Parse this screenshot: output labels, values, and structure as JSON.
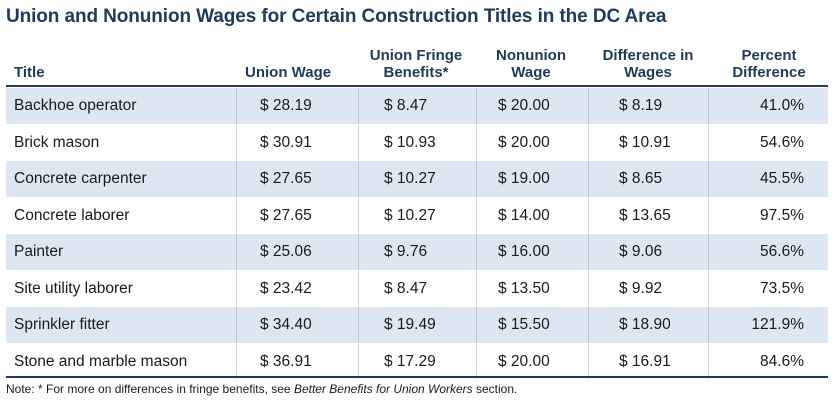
{
  "title": "Union and Nonunion Wages for Certain Construction Titles in the DC Area",
  "columns": {
    "title": "Title",
    "union_wage": "Union Wage",
    "fringe_line1": "Union Fringe",
    "fringe_line2": "Benefits*",
    "nonunion_line1": "Nonunion",
    "nonunion_line2": "Wage",
    "diff_line1": "Difference in",
    "diff_line2": "Wages",
    "pct_line1": "Percent",
    "pct_line2": "Difference"
  },
  "rows": [
    {
      "title": "Backhoe operator",
      "union_wage": "$ 28.19",
      "fringe": "$ 8.47",
      "nonunion": "$ 20.00",
      "diff": "$ 8.19",
      "pct": "41.0%"
    },
    {
      "title": "Brick mason",
      "union_wage": "$ 30.91",
      "fringe": "$ 10.93",
      "nonunion": "$ 20.00",
      "diff": "$ 10.91",
      "pct": "54.6%"
    },
    {
      "title": "Concrete carpenter",
      "union_wage": "$ 27.65",
      "fringe": "$ 10.27",
      "nonunion": "$ 19.00",
      "diff": "$ 8.65",
      "pct": "45.5%"
    },
    {
      "title": "Concrete laborer",
      "union_wage": "$ 27.65",
      "fringe": "$ 10.27",
      "nonunion": "$ 14.00",
      "diff": "$ 13.65",
      "pct": "97.5%"
    },
    {
      "title": "Painter",
      "union_wage": "$ 25.06",
      "fringe": "$ 9.76",
      "nonunion": "$ 16.00",
      "diff": "$ 9.06",
      "pct": "56.6%"
    },
    {
      "title": "Site utility laborer",
      "union_wage": "$ 23.42",
      "fringe": "$ 8.47",
      "nonunion": "$ 13.50",
      "diff": "$ 9.92",
      "pct": "73.5%"
    },
    {
      "title": "Sprinkler fitter",
      "union_wage": "$ 34.40",
      "fringe": "$ 19.49",
      "nonunion": "$ 15.50",
      "diff": "$ 18.90",
      "pct": "121.9%"
    },
    {
      "title": "Stone and marble mason",
      "union_wage": "$ 36.91",
      "fringe": "$ 17.29",
      "nonunion": "$ 20.00",
      "diff": "$ 16.91",
      "pct": "84.6%"
    }
  ],
  "note": {
    "prefix": "Note: * For more on differences in fringe benefits, see ",
    "italic": "Better Benefits for Union Workers",
    "suffix": " section."
  }
}
